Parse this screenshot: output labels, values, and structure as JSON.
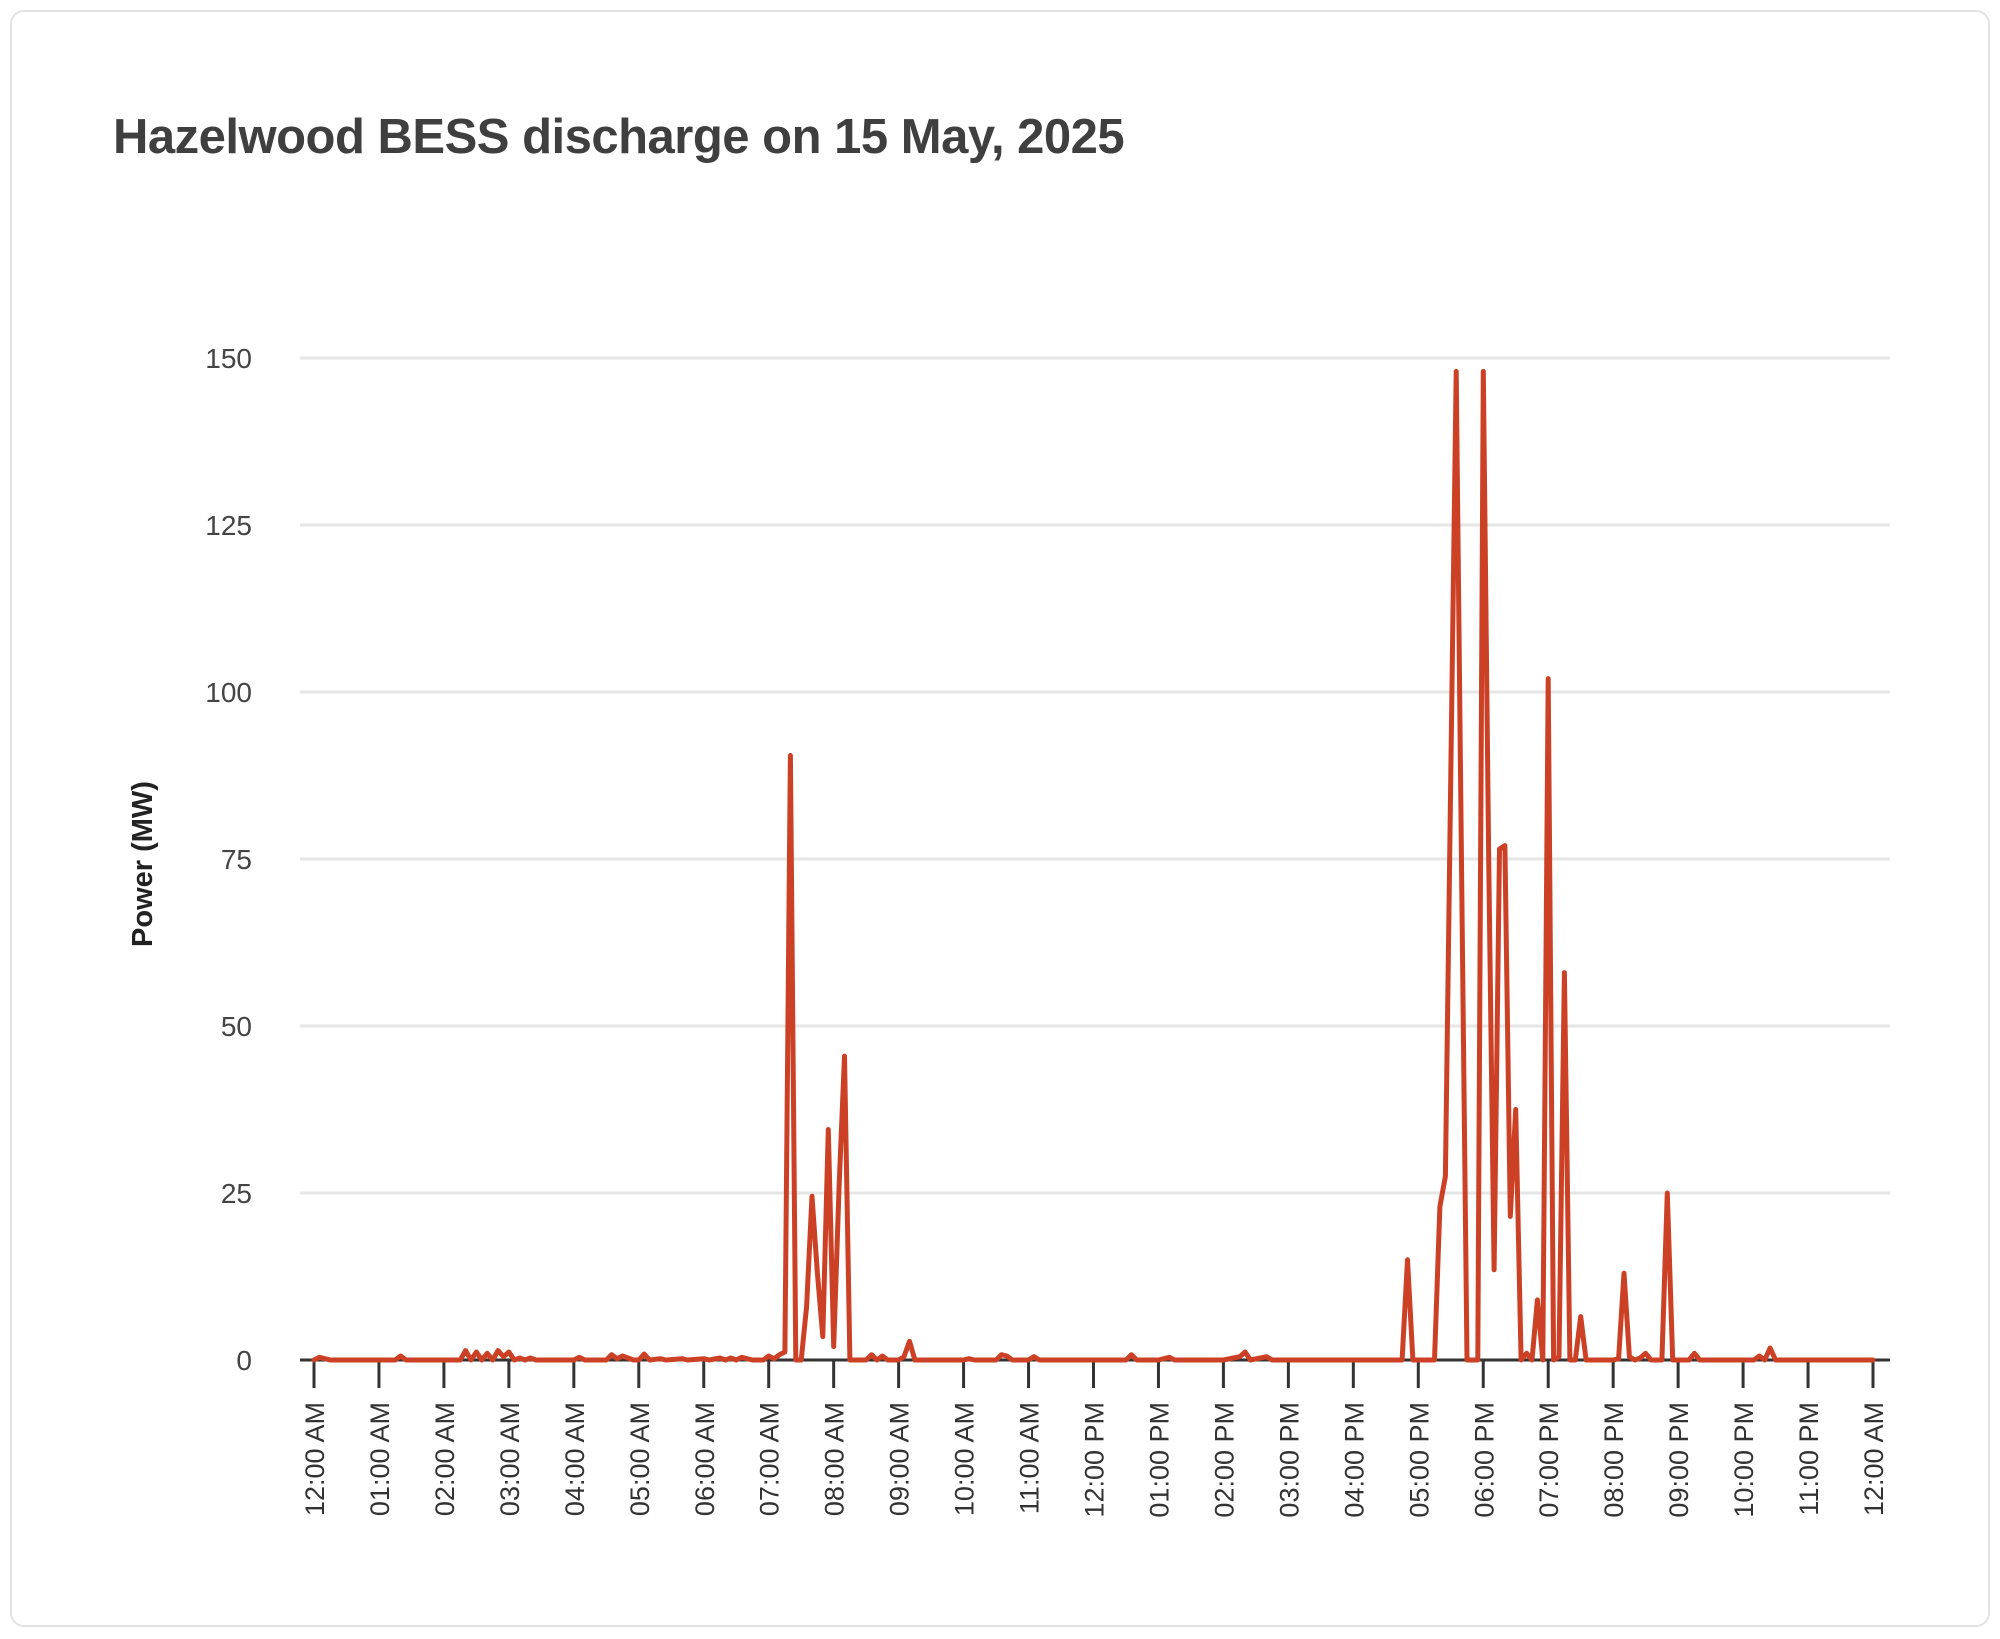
{
  "chart_data": {
    "type": "line",
    "title": "Hazelwood BESS discharge on 15 May, 2025",
    "xlabel": "",
    "ylabel": "Power (MW)",
    "ylim": [
      0,
      150
    ],
    "yticks": [
      0,
      25,
      50,
      75,
      100,
      125,
      150
    ],
    "ytick_labels": [
      "0",
      "25",
      "50",
      "75",
      "100",
      "125",
      "150"
    ],
    "xlim": [
      "00:00",
      "24:00"
    ],
    "xtick_labels": [
      "12:00 AM",
      "01:00 AM",
      "02:00 AM",
      "03:00 AM",
      "04:00 AM",
      "05:00 AM",
      "06:00 AM",
      "07:00 AM",
      "08:00 AM",
      "09:00 AM",
      "10:00 AM",
      "11:00 AM",
      "12:00 PM",
      "01:00 PM",
      "02:00 PM",
      "03:00 PM",
      "04:00 PM",
      "05:00 PM",
      "06:00 PM",
      "07:00 PM",
      "08:00 PM",
      "09:00 PM",
      "10:00 PM",
      "11:00 PM",
      "12:00 AM"
    ],
    "grid": true,
    "legend": "none",
    "line_color": "#cc4125",
    "series": [
      {
        "points": [
          [
            "00:00",
            0
          ],
          [
            "00:05",
            0.4
          ],
          [
            "00:10",
            0.2
          ],
          [
            "00:15",
            0
          ],
          [
            "00:30",
            0
          ],
          [
            "00:45",
            0
          ],
          [
            "01:00",
            0
          ],
          [
            "01:15",
            0
          ],
          [
            "01:20",
            0.6
          ],
          [
            "01:25",
            0
          ],
          [
            "01:45",
            0
          ],
          [
            "02:00",
            0
          ],
          [
            "02:15",
            0
          ],
          [
            "02:20",
            1.4
          ],
          [
            "02:25",
            0
          ],
          [
            "02:30",
            1.2
          ],
          [
            "02:35",
            0
          ],
          [
            "02:40",
            1
          ],
          [
            "02:45",
            0
          ],
          [
            "02:50",
            1.4
          ],
          [
            "02:55",
            0.5
          ],
          [
            "03:00",
            1.2
          ],
          [
            "03:05",
            0
          ],
          [
            "03:10",
            0.3
          ],
          [
            "03:15",
            0
          ],
          [
            "03:20",
            0.3
          ],
          [
            "03:25",
            0
          ],
          [
            "04:00",
            0
          ],
          [
            "04:05",
            0.4
          ],
          [
            "04:10",
            0
          ],
          [
            "04:30",
            0
          ],
          [
            "04:35",
            0.8
          ],
          [
            "04:40",
            0.2
          ],
          [
            "04:45",
            0.6
          ],
          [
            "04:50",
            0.3
          ],
          [
            "04:55",
            0
          ],
          [
            "05:00",
            0
          ],
          [
            "05:05",
            0.9
          ],
          [
            "05:10",
            0
          ],
          [
            "05:20",
            0.2
          ],
          [
            "05:25",
            0
          ],
          [
            "05:40",
            0.2
          ],
          [
            "05:45",
            0
          ],
          [
            "06:00",
            0.2
          ],
          [
            "06:05",
            0
          ],
          [
            "06:15",
            0.3
          ],
          [
            "06:20",
            0
          ],
          [
            "06:25",
            0.3
          ],
          [
            "06:30",
            0
          ],
          [
            "06:35",
            0.4
          ],
          [
            "06:40",
            0.2
          ],
          [
            "06:45",
            0
          ],
          [
            "06:55",
            0
          ],
          [
            "07:00",
            0.6
          ],
          [
            "07:05",
            0.2
          ],
          [
            "07:10",
            0.8
          ],
          [
            "07:15",
            1.2
          ],
          [
            "07:20",
            90.5
          ],
          [
            "07:25",
            0
          ],
          [
            "07:30",
            0
          ],
          [
            "07:35",
            8
          ],
          [
            "07:40",
            24.5
          ],
          [
            "07:45",
            13
          ],
          [
            "07:50",
            3.5
          ],
          [
            "07:55",
            34.5
          ],
          [
            "08:00",
            2
          ],
          [
            "08:05",
            26
          ],
          [
            "08:10",
            45.5
          ],
          [
            "08:15",
            0
          ],
          [
            "08:30",
            0
          ],
          [
            "08:35",
            0.8
          ],
          [
            "08:40",
            0
          ],
          [
            "08:45",
            0.6
          ],
          [
            "08:50",
            0
          ],
          [
            "09:00",
            0
          ],
          [
            "09:05",
            0.5
          ],
          [
            "09:10",
            2.8
          ],
          [
            "09:15",
            0
          ],
          [
            "09:45",
            0
          ],
          [
            "10:00",
            0
          ],
          [
            "10:05",
            0.2
          ],
          [
            "10:10",
            0
          ],
          [
            "10:30",
            0
          ],
          [
            "10:35",
            0.8
          ],
          [
            "10:40",
            0.6
          ],
          [
            "10:45",
            0
          ],
          [
            "11:00",
            0
          ],
          [
            "11:05",
            0.5
          ],
          [
            "11:10",
            0
          ],
          [
            "12:00",
            0
          ],
          [
            "12:30",
            0
          ],
          [
            "12:35",
            0.8
          ],
          [
            "12:40",
            0
          ],
          [
            "13:00",
            0
          ],
          [
            "13:10",
            0.4
          ],
          [
            "13:15",
            0
          ],
          [
            "14:00",
            0
          ],
          [
            "14:15",
            0.5
          ],
          [
            "14:20",
            1.2
          ],
          [
            "14:25",
            0
          ],
          [
            "14:40",
            0.5
          ],
          [
            "14:45",
            0
          ],
          [
            "15:00",
            0
          ],
          [
            "15:30",
            0
          ],
          [
            "16:00",
            0
          ],
          [
            "16:30",
            0
          ],
          [
            "16:45",
            0
          ],
          [
            "16:50",
            15
          ],
          [
            "16:55",
            0
          ],
          [
            "17:00",
            0
          ],
          [
            "17:15",
            0
          ],
          [
            "17:20",
            23
          ],
          [
            "17:25",
            27.5
          ],
          [
            "17:35",
            148
          ],
          [
            "17:40",
            73
          ],
          [
            "17:45",
            0
          ],
          [
            "17:55",
            0
          ],
          [
            "18:00",
            148
          ],
          [
            "18:05",
            75
          ],
          [
            "18:10",
            13.5
          ],
          [
            "18:15",
            76.5
          ],
          [
            "18:20",
            77
          ],
          [
            "18:25",
            21.5
          ],
          [
            "18:30",
            37.5
          ],
          [
            "18:35",
            0
          ],
          [
            "18:40",
            1
          ],
          [
            "18:45",
            0
          ],
          [
            "18:50",
            9
          ],
          [
            "18:55",
            0
          ],
          [
            "19:00",
            102
          ],
          [
            "19:05",
            0
          ],
          [
            "19:10",
            0.5
          ],
          [
            "19:15",
            58
          ],
          [
            "19:20",
            0
          ],
          [
            "19:25",
            0
          ],
          [
            "19:30",
            6.5
          ],
          [
            "19:35",
            0
          ],
          [
            "19:45",
            0
          ],
          [
            "20:00",
            0
          ],
          [
            "20:05",
            0.2
          ],
          [
            "20:10",
            13
          ],
          [
            "20:15",
            0.5
          ],
          [
            "20:20",
            0
          ],
          [
            "20:25",
            0.3
          ],
          [
            "20:30",
            1
          ],
          [
            "20:35",
            0
          ],
          [
            "20:40",
            0
          ],
          [
            "20:45",
            0
          ],
          [
            "20:50",
            25
          ],
          [
            "20:55",
            0
          ],
          [
            "21:10",
            0
          ],
          [
            "21:15",
            1
          ],
          [
            "21:20",
            0
          ],
          [
            "21:45",
            0
          ],
          [
            "22:00",
            0
          ],
          [
            "22:10",
            0
          ],
          [
            "22:15",
            0.6
          ],
          [
            "22:20",
            0
          ],
          [
            "22:25",
            1.8
          ],
          [
            "22:30",
            0
          ],
          [
            "23:00",
            0
          ],
          [
            "23:30",
            0
          ],
          [
            "24:00",
            0
          ]
        ]
      }
    ]
  }
}
